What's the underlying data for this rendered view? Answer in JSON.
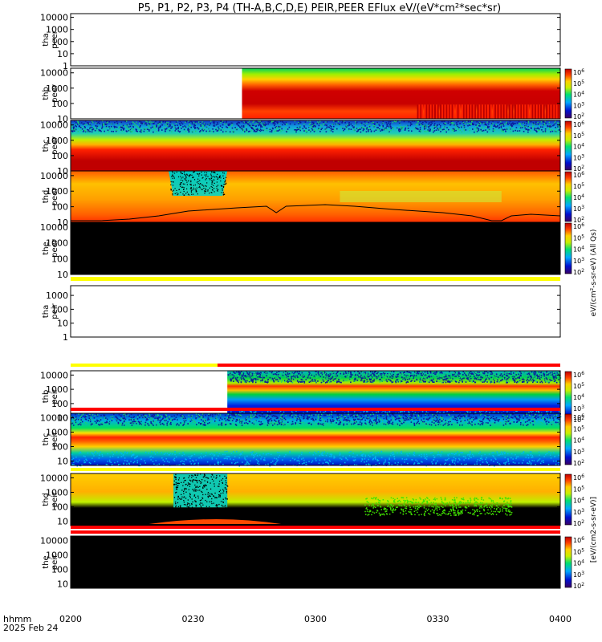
{
  "chart_data": {
    "type": "heatmap",
    "title": "P5, P1, P2, P3, P4 (TH-A,B,C,D,E) PEIR,PEER EFlux eV/(eV*cm²*sec*sr)",
    "x_axis": {
      "corner_label_1": "hhmm",
      "corner_label_2": "2025 Feb 24",
      "tick_labels": [
        "0200",
        "0230",
        "0300",
        "0330",
        "0400"
      ],
      "tick_values_min": [
        0,
        30,
        60,
        90,
        120
      ]
    },
    "colorbar": {
      "label_line_1": "eV/(cm²-s-sr-eV) (All Qs)",
      "label_line_2": "[eV/(cm2-s-sr-eV)]",
      "tick_exponents": [
        2,
        3,
        4,
        5,
        6
      ]
    },
    "panels": [
      {
        "name": "thaPeer",
        "label1": "tha",
        "label2": "peer",
        "yticks": [
          "1",
          "10",
          "100",
          "1000",
          "10000"
        ],
        "ymin": 1,
        "ymax": 20000,
        "colorbar": false,
        "data_start_frac": null,
        "style": "empty"
      },
      {
        "name": "thbPeer",
        "label1": "thb",
        "label2": "peer",
        "yticks": [
          "10",
          "100",
          "1000",
          "10000"
        ],
        "ymin": 10,
        "ymax": 20000,
        "colorbar": true,
        "data_start_frac": 0.35,
        "style": "peer_b"
      },
      {
        "name": "thcPeer",
        "label1": "thc",
        "label2": "peer",
        "yticks": [
          "10",
          "100",
          "1000",
          "10000"
        ],
        "ymin": 10,
        "ymax": 20000,
        "colorbar": true,
        "data_start_frac": 0.0,
        "style": "peer_c"
      },
      {
        "name": "thdPeer",
        "label1": "thd",
        "label2": "peer",
        "yticks": [
          "10",
          "100",
          "1000",
          "10000"
        ],
        "ymin": 10,
        "ymax": 20000,
        "colorbar": true,
        "data_start_frac": 0.0,
        "style": "peer_d"
      },
      {
        "name": "thePeer",
        "label1": "the",
        "label2": "peer",
        "yticks": [
          "10",
          "100",
          "1000",
          "10000"
        ],
        "ymin": 10,
        "ymax": 20000,
        "colorbar": true,
        "data_start_frac": 0.0,
        "style": "black"
      },
      {
        "name": "thaPeir",
        "label1": "tha",
        "label2": "peir",
        "yticks": [
          "1",
          "10",
          "100",
          "1000"
        ],
        "ymin": 1,
        "ymax": 5000,
        "colorbar": false,
        "data_start_frac": null,
        "style": "empty"
      },
      {
        "name": "thbPeir",
        "label1": "thb",
        "label2": "peir",
        "yticks": [
          "10",
          "100",
          "1000",
          "10000"
        ],
        "ymin": 5,
        "ymax": 20000,
        "colorbar": true,
        "data_start_frac": 0.32,
        "style": "peir_b"
      },
      {
        "name": "thcPeir",
        "label1": "thc",
        "label2": "peir",
        "yticks": [
          "10",
          "100",
          "1000",
          "10000"
        ],
        "ymin": 5,
        "ymax": 20000,
        "colorbar": true,
        "data_start_frac": 0.0,
        "style": "peir_c"
      },
      {
        "name": "thdPeir",
        "label1": "thd",
        "label2": "peir",
        "yticks": [
          "10",
          "100",
          "1000",
          "10000"
        ],
        "ymin": 5,
        "ymax": 20000,
        "colorbar": true,
        "data_start_frac": 0.0,
        "style": "peir_d"
      },
      {
        "name": "thePeir",
        "label1": "the",
        "label2": "peir",
        "yticks": [
          "10",
          "100",
          "1000",
          "10000"
        ],
        "ymin": 5,
        "ymax": 20000,
        "colorbar": true,
        "data_start_frac": 0.0,
        "style": "black"
      }
    ]
  }
}
